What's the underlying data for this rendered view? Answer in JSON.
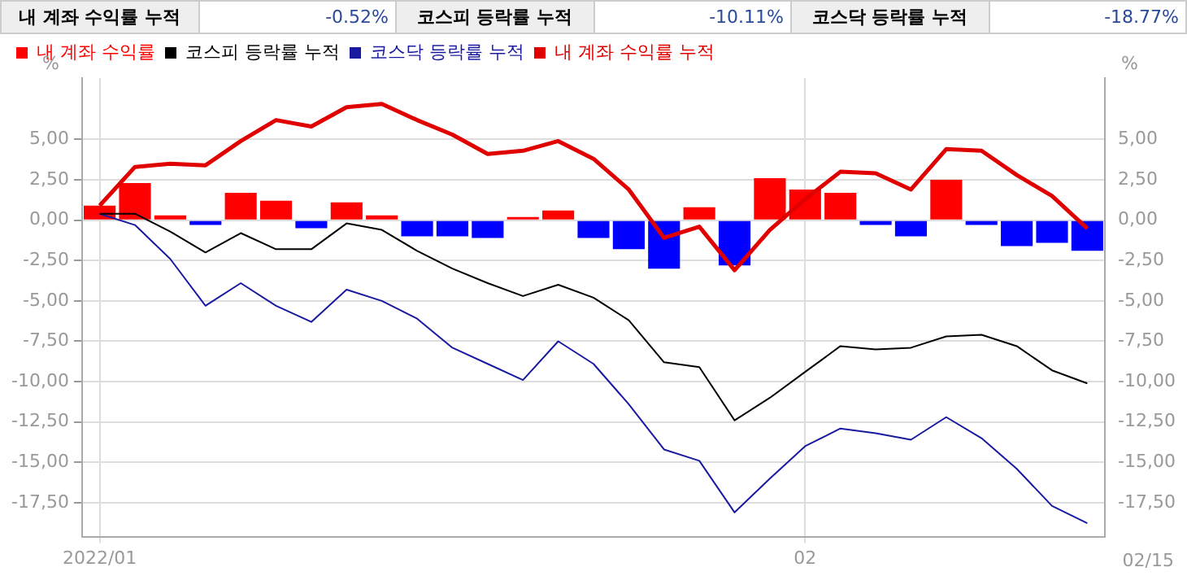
{
  "chart_data": {
    "type": "bar",
    "annotations": [
      "내 계좌 수익률 누적",
      "-0.52%",
      "코스피 등락률 누적",
      "-10.11%",
      "코스닥 등락률 누적",
      "-18.77%",
      "02/15"
    ],
    "ylabel": "%",
    "y2label": "%",
    "categories": [
      "2022/01",
      null,
      null,
      null,
      null,
      null,
      null,
      null,
      null,
      null,
      null,
      null,
      null,
      null,
      null,
      null,
      null,
      null,
      null,
      null,
      "02",
      null,
      null,
      null,
      null,
      null,
      null,
      null,
      null
    ],
    "series": [
      {
        "name": "내 계좌 수익률",
        "colors": [
          "#ff0000",
          "#ff0000",
          "#ff0000",
          "#0000ff",
          "#ff0000",
          "#ff0000",
          "#0000ff",
          "#ff0000",
          "#ff0000",
          "#0000ff",
          "#0000ff",
          "#0000ff",
          "#ff0000",
          "#ff0000",
          "#0000ff",
          "#0000ff",
          "#0000ff",
          "#ff0000",
          "#0000ff",
          "#ff0000",
          "#ff0000",
          "#ff0000",
          "#0000ff",
          "#0000ff",
          "#ff0000",
          "#0000ff",
          "#0000ff",
          "#0000ff",
          "#0000ff"
        ],
        "values": [
          0.9,
          2.3,
          0.3,
          -0.3,
          1.7,
          1.2,
          -0.5,
          1.1,
          0.3,
          -1.0,
          -1.0,
          -1.1,
          0.2,
          0.6,
          -1.1,
          -1.8,
          -3.0,
          0.8,
          -2.8,
          2.6,
          1.9,
          1.7,
          -0.3,
          -1.0,
          2.5,
          -0.3,
          -1.6,
          -1.4,
          -1.9
        ]
      },
      {
        "name": "코스피 등락률 누적",
        "type": "line",
        "color": "#000000",
        "values": [
          0.4,
          0.4,
          -0.7,
          -2.0,
          -0.8,
          -1.8,
          -1.8,
          -0.2,
          -0.6,
          -1.9,
          -3.0,
          -3.9,
          -4.7,
          -4.0,
          -4.8,
          -6.2,
          -8.8,
          -9.1,
          -12.4,
          -11.0,
          -9.4,
          -7.8,
          -8.0,
          -7.9,
          -7.2,
          -7.1,
          -7.8,
          -9.3,
          -10.11
        ]
      },
      {
        "name": "코스닥 등락률 누적",
        "type": "line",
        "color": "#1a1aa0",
        "values": [
          0.4,
          -0.3,
          -2.4,
          -5.3,
          -3.9,
          -5.3,
          -6.3,
          -4.3,
          -5.0,
          -6.1,
          -7.9,
          -8.9,
          -9.9,
          -7.5,
          -8.9,
          -11.4,
          -14.2,
          -14.9,
          -18.1,
          -16.0,
          -14.0,
          -12.9,
          -13.2,
          -13.6,
          -12.2,
          -13.5,
          -15.4,
          -17.7,
          -18.77
        ]
      },
      {
        "name": "내 계좌 수익률 누적",
        "type": "line",
        "color": "#e00000",
        "values": [
          0.9,
          3.3,
          3.5,
          3.4,
          4.9,
          6.2,
          5.8,
          7.0,
          7.2,
          6.2,
          5.3,
          4.1,
          4.3,
          4.9,
          3.8,
          1.9,
          -1.1,
          -0.4,
          -3.1,
          -0.6,
          1.3,
          3.0,
          2.9,
          1.9,
          4.4,
          4.3,
          2.8,
          1.5,
          -0.52
        ]
      }
    ],
    "ylim": [
      -19.6,
      8.8
    ],
    "yticks": [
      {
        "value": -17.5,
        "label": "-17,50"
      },
      {
        "value": -15,
        "label": "-15,00"
      },
      {
        "value": -12.5,
        "label": "-12,50"
      },
      {
        "value": -10,
        "label": "-10,00"
      },
      {
        "value": -7.5,
        "label": "-7,50"
      },
      {
        "value": -5,
        "label": "-5,00"
      },
      {
        "value": -2.5,
        "label": "-2,50"
      },
      {
        "value": 0,
        "label": "0,00"
      },
      {
        "value": 2.5,
        "label": "2,50"
      },
      {
        "value": 5,
        "label": "5,00"
      }
    ],
    "y2lim": [
      -19.6,
      8.8
    ],
    "y2ticks": [
      {
        "value": -17.5,
        "label": "-17,50"
      },
      {
        "value": -15,
        "label": "-15,00"
      },
      {
        "value": -12.5,
        "label": "-12,50"
      },
      {
        "value": -10,
        "label": "-10,00"
      },
      {
        "value": -7.5,
        "label": "-7,50"
      },
      {
        "value": -5,
        "label": "-5,00"
      },
      {
        "value": -2.5,
        "label": "-2,50"
      },
      {
        "value": 0,
        "label": "0,00"
      },
      {
        "value": 2.5,
        "label": "2,50"
      },
      {
        "value": 5,
        "label": "5,00"
      }
    ],
    "grid": true,
    "legend": "top left",
    "marker": "none"
  }
}
